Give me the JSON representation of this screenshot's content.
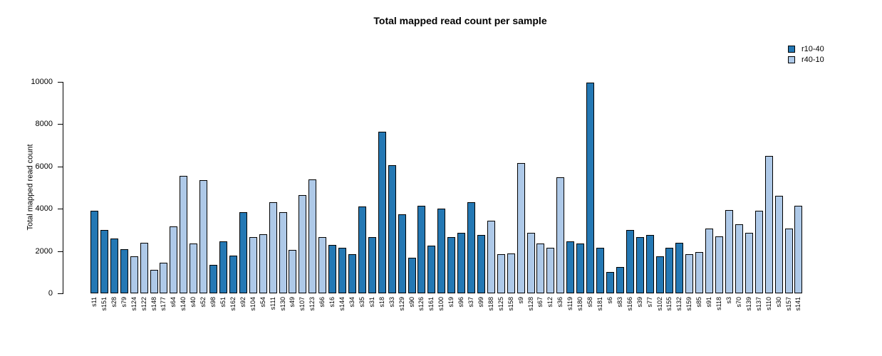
{
  "chart_data": {
    "type": "bar",
    "title": "Total mapped read count per sample",
    "xlabel": "",
    "ylabel": "Total mapped read count",
    "ylim": [
      0,
      10000
    ],
    "yticks": [
      0,
      2000,
      4000,
      6000,
      8000,
      10000
    ],
    "grid": false,
    "legend_position": "top-right",
    "legend": [
      {
        "label": "r10-40",
        "color": "#2478b4"
      },
      {
        "label": "r40-10",
        "color": "#aec9e8"
      }
    ],
    "categories": [
      "s11",
      "s151",
      "s28",
      "s79",
      "s124",
      "s122",
      "s148",
      "s177",
      "s64",
      "s140",
      "s40",
      "s52",
      "s98",
      "s51",
      "s162",
      "s92",
      "s104",
      "s54",
      "s111",
      "s130",
      "s49",
      "s107",
      "s123",
      "s66",
      "s16",
      "s144",
      "s34",
      "s35",
      "s31",
      "s18",
      "s33",
      "s129",
      "s90",
      "s126",
      "s161",
      "s100",
      "s19",
      "s96",
      "s37",
      "s99",
      "s188",
      "s125",
      "s158",
      "s9",
      "s128",
      "s67",
      "s12",
      "s36",
      "s119",
      "s180",
      "s58",
      "s181",
      "s6",
      "s83",
      "s166",
      "s39",
      "s77",
      "s102",
      "s155",
      "s132",
      "s159",
      "s85",
      "s91",
      "s118",
      "s3",
      "s70",
      "s139",
      "s137",
      "s110",
      "s30",
      "s157",
      "s141"
    ],
    "values": [
      3900,
      3000,
      2600,
      2100,
      1750,
      2400,
      1100,
      1450,
      3150,
      5550,
      2350,
      5350,
      1350,
      2450,
      1800,
      3850,
      2650,
      2800,
      4300,
      3850,
      2050,
      4650,
      5400,
      2650,
      2300,
      2150,
      1850,
      4100,
      2650,
      7650,
      6050,
      3750,
      1700,
      4150,
      2250,
      4000,
      2650,
      2850,
      4300,
      2750,
      3450,
      1850,
      1900,
      6150,
      2850,
      2350,
      2150,
      5500,
      2450,
      2350,
      9950,
      2150,
      1000,
      1250,
      3000,
      2650,
      2750,
      1750,
      2150,
      2400,
      1850,
      1950,
      3050,
      2700,
      3950,
      3250,
      2850,
      3900,
      6500,
      4600,
      3050,
      4150
    ],
    "groups": [
      "r10-40",
      "r10-40",
      "r10-40",
      "r10-40",
      "r40-10",
      "r40-10",
      "r40-10",
      "r40-10",
      "r40-10",
      "r40-10",
      "r40-10",
      "r40-10",
      "r10-40",
      "r10-40",
      "r10-40",
      "r10-40",
      "r40-10",
      "r40-10",
      "r40-10",
      "r40-10",
      "r40-10",
      "r40-10",
      "r40-10",
      "r40-10",
      "r10-40",
      "r10-40",
      "r10-40",
      "r10-40",
      "r10-40",
      "r10-40",
      "r10-40",
      "r10-40",
      "r10-40",
      "r10-40",
      "r10-40",
      "r10-40",
      "r10-40",
      "r10-40",
      "r10-40",
      "r10-40",
      "r40-10",
      "r40-10",
      "r40-10",
      "r40-10",
      "r40-10",
      "r40-10",
      "r40-10",
      "r40-10",
      "r10-40",
      "r10-40",
      "r10-40",
      "r10-40",
      "r10-40",
      "r10-40",
      "r10-40",
      "r10-40",
      "r10-40",
      "r10-40",
      "r10-40",
      "r10-40",
      "r40-10",
      "r40-10",
      "r40-10",
      "r40-10",
      "r40-10",
      "r40-10",
      "r40-10",
      "r40-10",
      "r40-10",
      "r40-10",
      "r40-10",
      "r40-10"
    ]
  }
}
